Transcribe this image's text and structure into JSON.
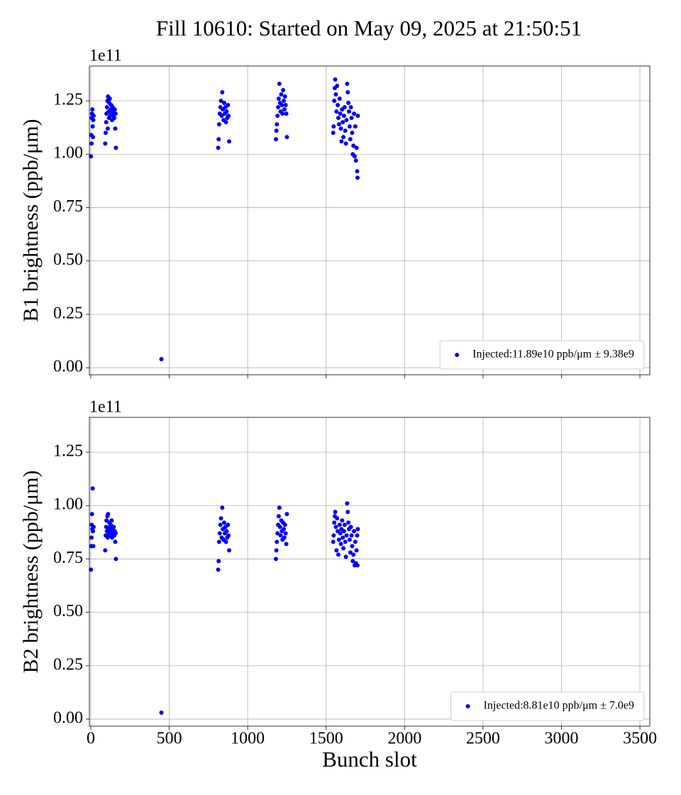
{
  "title": "Fill 10610: Started on May 09, 2025 at 21:50:51",
  "chart_data": [
    {
      "type": "scatter",
      "ylabel": "B1 brightness (ppb/μm)",
      "y_offset_label": "1e11",
      "xlim": [
        -9,
        3563
      ],
      "ylim": [
        -0.033,
        1.413
      ],
      "xticks": [
        0,
        500,
        1000,
        1500,
        2000,
        2500,
        3000,
        3500
      ],
      "yticks": [
        {
          "value": 0,
          "label": "0.00"
        },
        {
          "value": 0.25,
          "label": "0.25"
        },
        {
          "value": 0.5,
          "label": "0.50"
        },
        {
          "value": 0.75,
          "label": "0.75"
        },
        {
          "value": 1,
          "label": "1.00"
        },
        {
          "value": 1.25,
          "label": "1.25"
        }
      ],
      "grid": true,
      "legend": "lower right",
      "series": [
        {
          "name": "Injected:11.89e10 ppb/μm ± 9.38e9",
          "color": "#0000ff",
          "x": [
            1,
            3,
            5,
            6,
            8,
            10,
            12,
            14,
            16,
            18,
            92,
            95,
            98,
            100,
            103,
            106,
            108,
            110,
            113,
            116,
            118,
            121,
            124,
            127,
            130,
            133,
            136,
            140,
            143,
            146,
            150,
            153,
            156,
            158,
            160,
            450,
            812,
            815,
            818,
            822,
            826,
            830,
            834,
            838,
            842,
            846,
            850,
            854,
            858,
            862,
            866,
            870,
            874,
            878,
            882,
            1180,
            1183,
            1186,
            1190,
            1194,
            1198,
            1202,
            1206,
            1210,
            1214,
            1218,
            1222,
            1226,
            1230,
            1234,
            1238,
            1242,
            1246,
            1250,
            1545,
            1548,
            1552,
            1555,
            1558,
            1562,
            1566,
            1570,
            1574,
            1578,
            1582,
            1586,
            1590,
            1594,
            1598,
            1602,
            1606,
            1610,
            1614,
            1618,
            1622,
            1626,
            1630,
            1634,
            1638,
            1642,
            1646,
            1650,
            1654,
            1658,
            1662,
            1666,
            1670,
            1674,
            1678,
            1682,
            1686,
            1690,
            1694,
            1698,
            1700,
            1702
          ],
          "values": [
            0.99,
            1.09,
            1.05,
            1.17,
            1.19,
            1.21,
            1.13,
            1.08,
            1.16,
            1.18,
            1.05,
            1.1,
            1.15,
            1.19,
            1.22,
            1.25,
            1.12,
            1.27,
            1.2,
            1.17,
            1.24,
            1.26,
            1.18,
            1.21,
            1.23,
            1.19,
            1.16,
            1.22,
            1.18,
            1.2,
            1.17,
            1.21,
            1.12,
            1.19,
            1.03,
            0.04,
            1.03,
            1.07,
            1.14,
            1.19,
            1.22,
            1.25,
            1.18,
            1.29,
            1.21,
            1.16,
            1.24,
            1.19,
            1.22,
            1.15,
            1.2,
            1.17,
            1.23,
            1.18,
            1.06,
            1.07,
            1.11,
            1.14,
            1.18,
            1.22,
            1.26,
            1.33,
            1.24,
            1.2,
            1.28,
            1.23,
            1.19,
            1.3,
            1.25,
            1.21,
            1.27,
            1.23,
            1.19,
            1.08,
            1.1,
            1.13,
            1.25,
            1.31,
            1.35,
            1.28,
            1.2,
            1.32,
            1.23,
            1.17,
            1.14,
            1.26,
            1.19,
            1.12,
            1.06,
            1.21,
            1.15,
            1.08,
            1.18,
            1.22,
            1.11,
            1.05,
            1.16,
            1.33,
            1.29,
            1.24,
            1.2,
            1.13,
            1.07,
            1.22,
            1.17,
            1.1,
            1.0,
            1.04,
            1.19,
            0.99,
            1.13,
            0.97,
            1.03,
            0.92,
            0.89,
            1.18
          ]
        }
      ]
    },
    {
      "type": "scatter",
      "ylabel": "B2 brightness (ppb/μm)",
      "xlabel": "Bunch slot",
      "y_offset_label": "1e11",
      "xlim": [
        -9,
        3563
      ],
      "ylim": [
        -0.033,
        1.413
      ],
      "xticks": [
        0,
        500,
        1000,
        1500,
        2000,
        2500,
        3000,
        3500
      ],
      "yticks": [
        {
          "value": 0,
          "label": "0.00"
        },
        {
          "value": 0.25,
          "label": "0.25"
        },
        {
          "value": 0.5,
          "label": "0.50"
        },
        {
          "value": 0.75,
          "label": "0.75"
        },
        {
          "value": 1,
          "label": "1.00"
        },
        {
          "value": 1.25,
          "label": "1.25"
        }
      ],
      "grid": true,
      "legend": "lower right",
      "series": [
        {
          "name": "Injected:8.81e10 ppb/μm ± 7.0e9",
          "color": "#0000ff",
          "x": [
            1,
            3,
            5,
            6,
            8,
            10,
            12,
            14,
            16,
            18,
            92,
            95,
            98,
            100,
            103,
            106,
            108,
            110,
            113,
            116,
            118,
            121,
            124,
            127,
            130,
            133,
            136,
            140,
            143,
            146,
            150,
            153,
            156,
            158,
            160,
            450,
            812,
            815,
            818,
            822,
            826,
            830,
            834,
            838,
            842,
            846,
            850,
            854,
            858,
            862,
            866,
            870,
            874,
            878,
            882,
            1180,
            1183,
            1186,
            1190,
            1194,
            1198,
            1202,
            1206,
            1210,
            1214,
            1218,
            1222,
            1226,
            1230,
            1234,
            1238,
            1242,
            1246,
            1250,
            1545,
            1548,
            1552,
            1555,
            1558,
            1562,
            1566,
            1570,
            1574,
            1578,
            1582,
            1586,
            1590,
            1594,
            1598,
            1602,
            1606,
            1610,
            1614,
            1618,
            1622,
            1626,
            1630,
            1634,
            1638,
            1642,
            1646,
            1650,
            1654,
            1658,
            1662,
            1666,
            1670,
            1674,
            1678,
            1682,
            1686,
            1690,
            1694,
            1698,
            1700,
            1702
          ],
          "values": [
            0.7,
            0.81,
            0.85,
            0.91,
            0.96,
            0.89,
            1.08,
            0.88,
            0.81,
            0.9,
            0.79,
            0.86,
            0.9,
            0.93,
            0.88,
            0.95,
            0.85,
            0.96,
            0.89,
            0.87,
            0.92,
            0.9,
            0.86,
            0.91,
            0.88,
            0.93,
            0.85,
            0.89,
            0.87,
            0.9,
            0.86,
            0.88,
            0.83,
            0.87,
            0.75,
            0.03,
            0.7,
            0.74,
            0.83,
            0.87,
            0.91,
            0.94,
            0.85,
            0.99,
            0.89,
            0.84,
            0.92,
            0.87,
            0.9,
            0.83,
            0.88,
            0.85,
            0.91,
            0.86,
            0.79,
            0.75,
            0.79,
            0.83,
            0.87,
            0.91,
            0.95,
            0.99,
            0.9,
            0.86,
            0.93,
            0.88,
            0.84,
            0.92,
            0.89,
            0.85,
            0.91,
            0.87,
            0.82,
            0.96,
            0.83,
            0.86,
            0.92,
            0.95,
            0.97,
            0.9,
            0.79,
            0.94,
            0.88,
            0.77,
            0.84,
            0.91,
            0.87,
            0.82,
            0.89,
            0.93,
            0.85,
            0.8,
            0.88,
            0.91,
            0.83,
            0.76,
            0.86,
            1.01,
            0.97,
            0.92,
            0.89,
            0.84,
            0.78,
            0.9,
            0.86,
            0.81,
            0.74,
            0.77,
            0.88,
            0.72,
            0.83,
            0.73,
            0.79,
            0.86,
            0.72,
            0.89
          ]
        }
      ]
    }
  ]
}
